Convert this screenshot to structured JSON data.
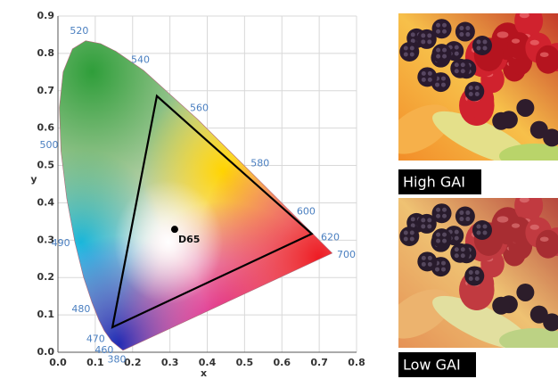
{
  "chart_data": {
    "type": "chromaticity",
    "xlabel": "x",
    "ylabel": "y",
    "xlim": [
      0,
      0.8
    ],
    "ylim": [
      0,
      0.9
    ],
    "xticks": [
      {
        "value": 0,
        "label": "0.0"
      },
      0.1,
      0.2,
      0.3,
      0.4,
      0.5,
      0.6,
      0.7,
      0.8
    ],
    "yticks": [
      {
        "value": 0,
        "label": "0.0"
      },
      0.1,
      0.2,
      0.3,
      0.4,
      0.5,
      0.6,
      0.7,
      0.8,
      0.9
    ],
    "grid": true,
    "locus": {
      "wavelengths": [
        380,
        460,
        470,
        null,
        480,
        null,
        490,
        null,
        500,
        null,
        null,
        null,
        520,
        null,
        null,
        540,
        560,
        580,
        600,
        620,
        700
      ],
      "x": [
        0.1741,
        0.144,
        0.1241,
        0.1096,
        0.0913,
        0.0687,
        0.0454,
        0.0235,
        0.0082,
        0.0039,
        0.0139,
        0.0389,
        0.0743,
        0.1142,
        0.1547,
        0.2296,
        0.3731,
        0.5125,
        0.627,
        0.6915,
        0.7347
      ],
      "y": [
        0.005,
        0.0297,
        0.0578,
        0.0868,
        0.1327,
        0.2007,
        0.295,
        0.4127,
        0.5384,
        0.6548,
        0.7502,
        0.812,
        0.8338,
        0.8262,
        0.8059,
        0.7543,
        0.6245,
        0.4866,
        0.3725,
        0.3083,
        0.2653
      ],
      "label_color": "#4a7fc0"
    },
    "gamut": {
      "x": [
        0.68,
        0.265,
        0.146
      ],
      "y": [
        0.317,
        0.686,
        0.067
      ],
      "color": "#000000"
    },
    "white_point": {
      "label": "D65",
      "x": 0.3127,
      "y": 0.329
    }
  },
  "images": [
    {
      "caption": "High GAI"
    },
    {
      "caption": "Low GAI"
    }
  ]
}
